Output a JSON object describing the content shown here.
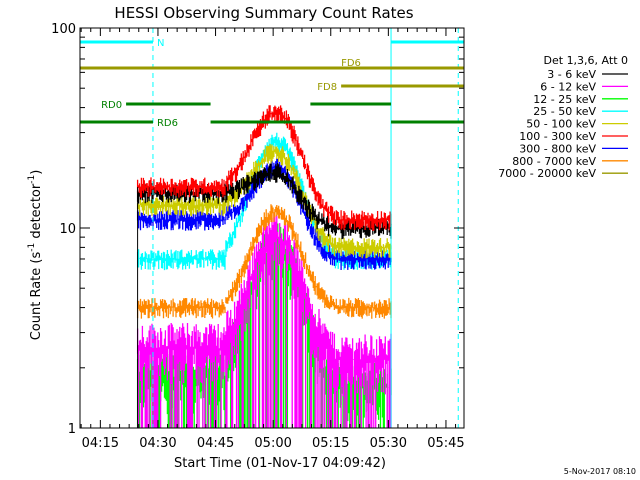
{
  "chart_data": {
    "type": "line",
    "title": "HESSI Observing Summary Count Rates",
    "xlabel": "Start Time (01-Nov-17 04:09:42)",
    "ylabel_main": "Count Rate (s",
    "ylabel_sup1": "-1",
    "ylabel_mid": " detector",
    "ylabel_sup2": "-1",
    "ylabel_end": ")",
    "y_scale": "log",
    "ylim": [
      1,
      100
    ],
    "x_minutes_range": [
      0,
      100
    ],
    "x_ticks": [
      {
        "label": "04:15",
        "minute": 5.3
      },
      {
        "label": "04:30",
        "minute": 20.3
      },
      {
        "label": "04:45",
        "minute": 35.3
      },
      {
        "label": "05:00",
        "minute": 50.3
      },
      {
        "label": "05:15",
        "minute": 65.3
      },
      {
        "label": "05:30",
        "minute": 80.3
      },
      {
        "label": "05:45",
        "minute": 95.3
      }
    ],
    "y_ticks": [
      {
        "label": "1",
        "value": 1
      },
      {
        "label": "10",
        "value": 10
      },
      {
        "label": "100",
        "value": 100
      }
    ],
    "legend_header": "Det 1,3,6, Att 0",
    "legend_position": "right",
    "series": [
      {
        "name": "3 - 6 keV",
        "color": "#000000",
        "edge": 15,
        "peak": 19,
        "tail": 10
      },
      {
        "name": "6 - 12 keV",
        "color": "#ff00ff",
        "edge": 2.5,
        "peak": 9,
        "tail": 2.2
      },
      {
        "name": "12 - 25 keV",
        "color": "#00ff00",
        "edge": 1.8,
        "peak": 8,
        "tail": 1.6
      },
      {
        "name": "25 - 50 keV",
        "color": "#00ffff",
        "edge": 7,
        "peak": 27,
        "tail": 7
      },
      {
        "name": "50 - 100 keV",
        "color": "#cccc00",
        "edge": 13,
        "peak": 24,
        "tail": 8
      },
      {
        "name": "100 - 300 keV",
        "color": "#ff0000",
        "edge": 16,
        "peak": 38,
        "tail": 11
      },
      {
        "name": "300 - 800 keV",
        "color": "#0000ff",
        "edge": 11,
        "peak": 20,
        "tail": 7
      },
      {
        "name": "800 - 7000 keV",
        "color": "#ff8800",
        "edge": 4,
        "peak": 12,
        "tail": 4
      },
      {
        "name": "7000 - 20000 keV",
        "color": "#999900",
        "edge": 0,
        "peak": 0,
        "tail": 0
      }
    ],
    "data_window_minutes": [
      15,
      81
    ],
    "flare_peak_minute": 51,
    "annotations": {
      "segments": [
        {
          "label": "N",
          "color": "#00ffff",
          "y": 0.965,
          "x0": 0,
          "x1": 19
        },
        {
          "label": "",
          "color": "#00ffff",
          "y": 0.965,
          "x0": 81,
          "x1": 100
        },
        {
          "label": "FD6",
          "color": "#999900",
          "y": 0.9,
          "x0": 0,
          "x1": 100
        },
        {
          "label": "FD8",
          "color": "#999900",
          "y": 0.855,
          "x0": 68,
          "x1": 100
        },
        {
          "label": "RD0",
          "color": "#008000",
          "y": 0.81,
          "x0": 12,
          "x1": 34
        },
        {
          "label": "",
          "color": "#008000",
          "y": 0.81,
          "x0": 60,
          "x1": 81
        },
        {
          "label": "RD6",
          "color": "#008000",
          "y": 0.765,
          "x0": 0,
          "x1": 19
        },
        {
          "label": "",
          "color": "#008000",
          "y": 0.765,
          "x0": 34,
          "x1": 60
        },
        {
          "label": "",
          "color": "#008000",
          "y": 0.765,
          "x0": 81,
          "x1": 100
        }
      ],
      "vlines": [
        {
          "minute": 0,
          "style": "solid",
          "color": "#00ffff"
        },
        {
          "minute": 19,
          "style": "dashed",
          "color": "#00ffff"
        },
        {
          "minute": 81,
          "style": "solid",
          "color": "#00ffff"
        },
        {
          "minute": 98.5,
          "style": "dashed",
          "color": "#00ffff"
        }
      ]
    }
  },
  "footer": {
    "timestamp": "5-Nov-2017 08:10"
  }
}
